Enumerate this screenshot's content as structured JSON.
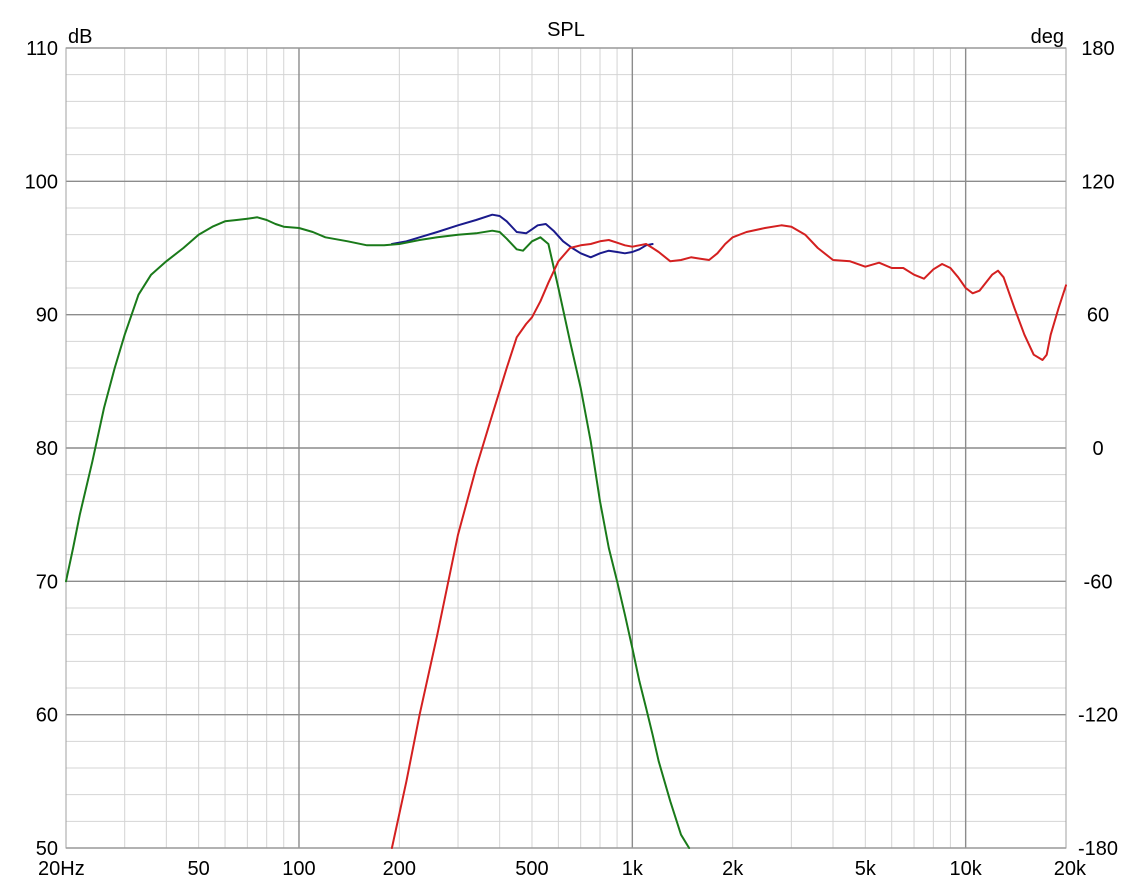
{
  "chart_data": {
    "type": "line",
    "title": "SPL",
    "ylabel": "dB",
    "y2label": "deg",
    "xscale": "log",
    "xlim": [
      20,
      20000
    ],
    "ylim": [
      50,
      110
    ],
    "y2lim": [
      -180,
      180
    ],
    "grid": true,
    "x_ticks": [
      {
        "value": 20,
        "label": "20Hz"
      },
      {
        "value": 50,
        "label": "50"
      },
      {
        "value": 100,
        "label": "100"
      },
      {
        "value": 200,
        "label": "200"
      },
      {
        "value": 500,
        "label": "500"
      },
      {
        "value": 1000,
        "label": "1k"
      },
      {
        "value": 2000,
        "label": "2k"
      },
      {
        "value": 5000,
        "label": "5k"
      },
      {
        "value": 10000,
        "label": "10k"
      },
      {
        "value": 20000,
        "label": "20k"
      }
    ],
    "y_ticks": [
      {
        "value": 110,
        "label": "110"
      },
      {
        "value": 100,
        "label": "100"
      },
      {
        "value": 90,
        "label": "90"
      },
      {
        "value": 80,
        "label": "80"
      },
      {
        "value": 70,
        "label": "70"
      },
      {
        "value": 60,
        "label": "60"
      },
      {
        "value": 50,
        "label": "50"
      }
    ],
    "y2_ticks": [
      {
        "value": 180,
        "label": "180"
      },
      {
        "value": 120,
        "label": "120"
      },
      {
        "value": 60,
        "label": "60"
      },
      {
        "value": 0,
        "label": "0"
      },
      {
        "value": -60,
        "label": "-60"
      },
      {
        "value": -120,
        "label": "-120"
      },
      {
        "value": -180,
        "label": "-180"
      }
    ],
    "series": [
      {
        "color": "#1a1a8c",
        "x": [
          190,
          210,
          230,
          260,
          300,
          340,
          380,
          400,
          420,
          450,
          480,
          500,
          520,
          550,
          580,
          620,
          660,
          700,
          750,
          800,
          850,
          900,
          950,
          1000,
          1050,
          1100,
          1150
        ],
        "y": [
          95.3,
          95.5,
          95.8,
          96.2,
          96.7,
          97.1,
          97.5,
          97.4,
          97.0,
          96.2,
          96.1,
          96.4,
          96.7,
          96.8,
          96.3,
          95.5,
          95.0,
          94.6,
          94.3,
          94.6,
          94.8,
          94.7,
          94.6,
          94.7,
          94.9,
          95.2,
          95.3
        ]
      },
      {
        "color": "#1a7a1a",
        "x": [
          20,
          21,
          22,
          24,
          26,
          28,
          30,
          33,
          36,
          40,
          45,
          50,
          55,
          60,
          65,
          70,
          75,
          80,
          85,
          90,
          100,
          110,
          120,
          140,
          160,
          180,
          200,
          230,
          260,
          300,
          340,
          380,
          400,
          420,
          450,
          470,
          500,
          530,
          560,
          600,
          650,
          700,
          750,
          800,
          850,
          900,
          950,
          1000,
          1050,
          1100,
          1150,
          1200,
          1300,
          1400,
          1480
        ],
        "y": [
          70,
          72.5,
          75,
          79,
          83,
          86,
          88.5,
          91.5,
          93,
          94,
          95,
          96,
          96.6,
          97,
          97.1,
          97.2,
          97.3,
          97.1,
          96.8,
          96.6,
          96.5,
          96.2,
          95.8,
          95.5,
          95.2,
          95.2,
          95.3,
          95.6,
          95.8,
          96.0,
          96.1,
          96.3,
          96.2,
          95.7,
          94.9,
          94.8,
          95.5,
          95.8,
          95.3,
          92,
          88,
          84.5,
          80.5,
          76,
          72.5,
          70,
          67.5,
          65,
          62.5,
          60.5,
          58.5,
          56.5,
          53.5,
          51,
          50
        ]
      },
      {
        "color": "#d42020",
        "x": [
          190,
          210,
          230,
          260,
          300,
          340,
          380,
          420,
          450,
          480,
          500,
          530,
          560,
          600,
          650,
          700,
          750,
          800,
          850,
          900,
          950,
          1000,
          1050,
          1100,
          1150,
          1200,
          1300,
          1400,
          1500,
          1600,
          1700,
          1800,
          1900,
          2000,
          2200,
          2500,
          2800,
          3000,
          3300,
          3600,
          4000,
          4500,
          5000,
          5500,
          6000,
          6500,
          7000,
          7500,
          8000,
          8500,
          9000,
          9500,
          10000,
          10500,
          11000,
          12000,
          12500,
          13000,
          14000,
          15000,
          16000,
          17000,
          17500,
          18000,
          19000,
          20000
        ],
        "y": [
          50,
          55,
          60,
          66,
          73.5,
          78.5,
          82.5,
          86,
          88.3,
          89.3,
          89.8,
          91,
          92.4,
          94,
          95,
          95.2,
          95.3,
          95.5,
          95.6,
          95.4,
          95.2,
          95.1,
          95.2,
          95.3,
          95.0,
          94.7,
          94.0,
          94.1,
          94.3,
          94.2,
          94.1,
          94.6,
          95.3,
          95.8,
          96.2,
          96.5,
          96.7,
          96.6,
          96.0,
          95.0,
          94.1,
          94.0,
          93.6,
          93.9,
          93.5,
          93.5,
          93.0,
          92.7,
          93.4,
          93.8,
          93.5,
          92.8,
          92.0,
          91.6,
          91.8,
          93.0,
          93.3,
          92.8,
          90.5,
          88.5,
          87.0,
          86.6,
          87.0,
          88.5,
          90.5,
          92.2
        ]
      }
    ]
  }
}
